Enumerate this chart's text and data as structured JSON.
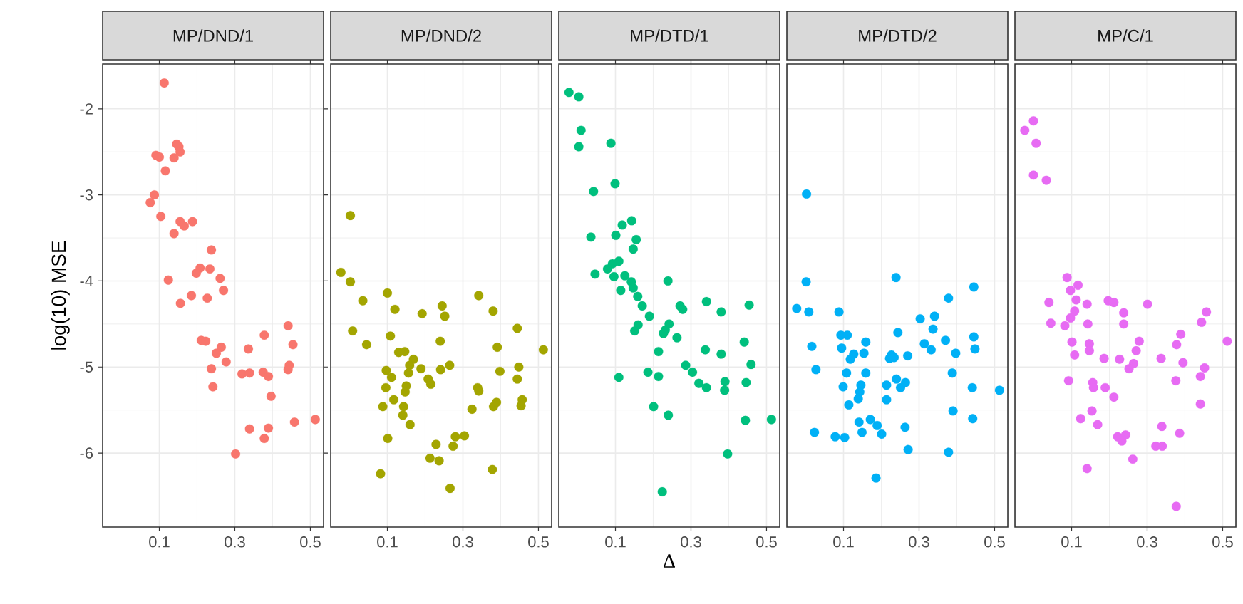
{
  "chart_data": [
    {
      "type": "scatter",
      "title": "MP/DND/1",
      "ylabel": "log(10) MSE",
      "color": "#F8766D",
      "grid": true,
      "xlim": [
        -0.05,
        0.535
      ],
      "ylim": [
        -6.86,
        -1.48
      ],
      "xticks": [
        0.1,
        0.3,
        0.5
      ],
      "yticks": [
        -6,
        -5,
        -4,
        -3,
        -2
      ],
      "x": [
        0.113,
        0.091,
        0.1,
        0.146,
        0.152,
        0.155,
        0.139,
        0.116,
        0.087,
        0.076,
        0.104,
        0.155,
        0.188,
        0.166,
        0.139,
        0.238,
        0.208,
        0.234,
        0.198,
        0.261,
        0.124,
        0.27,
        0.185,
        0.227,
        0.156,
        0.441,
        0.378,
        0.211,
        0.223,
        0.454,
        0.264,
        0.336,
        0.251,
        0.277,
        0.444,
        0.441,
        0.238,
        0.319,
        0.339,
        0.375,
        0.389,
        0.242,
        0.396,
        0.458,
        0.513,
        0.339,
        0.389,
        0.378,
        0.302
      ],
      "values": [
        -1.7,
        -2.54,
        -2.56,
        -2.41,
        -2.44,
        -2.5,
        -2.57,
        -2.72,
        -3.0,
        -3.09,
        -3.25,
        -3.31,
        -3.31,
        -3.36,
        -3.45,
        -3.64,
        -3.85,
        -3.86,
        -3.91,
        -3.97,
        -3.99,
        -4.11,
        -4.17,
        -4.2,
        -4.26,
        -4.52,
        -4.63,
        -4.69,
        -4.7,
        -4.74,
        -4.77,
        -4.79,
        -4.84,
        -4.94,
        -4.98,
        -5.03,
        -5.02,
        -5.08,
        -5.07,
        -5.06,
        -5.11,
        -5.23,
        -5.34,
        -5.64,
        -5.61,
        -5.72,
        -5.71,
        -5.83,
        -6.01
      ]
    },
    {
      "type": "scatter",
      "title": "MP/DND/2",
      "color": "#A3A500",
      "grid": true,
      "tick_labels": "x",
      "xlim": [
        -0.05,
        0.535
      ],
      "ylim": [
        -6.86,
        -1.48
      ],
      "xticks": [
        0.1,
        0.3,
        0.5
      ],
      "yticks": [
        -6,
        -5,
        -4,
        -3,
        -2
      ],
      "x": [
        0.002,
        -0.023,
        0.002,
        0.035,
        0.1,
        0.12,
        0.192,
        0.245,
        0.252,
        0.342,
        0.38,
        0.008,
        0.045,
        0.108,
        0.444,
        0.24,
        0.13,
        0.146,
        0.391,
        0.513,
        0.169,
        0.159,
        0.189,
        0.097,
        0.111,
        0.156,
        0.208,
        0.215,
        0.241,
        0.265,
        0.398,
        0.448,
        0.444,
        0.096,
        0.15,
        0.147,
        0.339,
        0.342,
        0.117,
        0.088,
        0.143,
        0.141,
        0.16,
        0.324,
        0.381,
        0.389,
        0.457,
        0.454,
        0.101,
        0.229,
        0.28,
        0.304,
        0.274,
        0.213,
        0.237,
        0.082,
        0.378,
        0.266
      ],
      "values": [
        -3.24,
        -3.9,
        -4.01,
        -4.23,
        -4.14,
        -4.33,
        -4.38,
        -4.29,
        -4.41,
        -4.17,
        -4.35,
        -4.58,
        -4.74,
        -4.64,
        -4.55,
        -4.7,
        -4.83,
        -4.82,
        -4.77,
        -4.8,
        -4.91,
        -4.98,
        -5.02,
        -5.04,
        -5.12,
        -5.07,
        -5.14,
        -5.2,
        -5.03,
        -4.98,
        -5.05,
        -5.0,
        -5.14,
        -5.24,
        -5.22,
        -5.29,
        -5.24,
        -5.28,
        -5.38,
        -5.46,
        -5.46,
        -5.56,
        -5.67,
        -5.49,
        -5.46,
        -5.41,
        -5.38,
        -5.45,
        -5.83,
        -5.9,
        -5.81,
        -5.8,
        -5.92,
        -6.06,
        -6.09,
        -6.24,
        -6.19,
        -6.41
      ]
    },
    {
      "type": "scatter",
      "title": "MP/DTD/1",
      "xlabel": "Δ",
      "color": "#00BF7D",
      "grid": true,
      "tick_labels": "x",
      "xlim": [
        -0.05,
        0.535
      ],
      "ylim": [
        -6.86,
        -1.48
      ],
      "xticks": [
        0.1,
        0.3,
        0.5
      ],
      "yticks": [
        -6,
        -5,
        -4,
        -3,
        -2
      ],
      "x": [
        -0.023,
        0.003,
        0.009,
        0.003,
        0.088,
        0.099,
        0.042,
        0.118,
        0.143,
        0.101,
        0.155,
        0.147,
        0.035,
        0.109,
        0.092,
        0.079,
        0.046,
        0.096,
        0.125,
        0.142,
        0.114,
        0.239,
        0.147,
        0.159,
        0.171,
        0.19,
        0.271,
        0.278,
        0.341,
        0.38,
        0.454,
        0.16,
        0.151,
        0.242,
        0.232,
        0.227,
        0.263,
        0.441,
        0.214,
        0.338,
        0.38,
        0.459,
        0.286,
        0.109,
        0.186,
        0.214,
        0.304,
        0.321,
        0.341,
        0.39,
        0.389,
        0.446,
        0.201,
        0.24,
        0.444,
        0.513,
        0.397,
        0.224
      ],
      "values": [
        -1.81,
        -1.86,
        -2.25,
        -2.44,
        -2.4,
        -2.87,
        -2.96,
        -3.35,
        -3.3,
        -3.47,
        -3.52,
        -3.63,
        -3.49,
        -3.77,
        -3.8,
        -3.86,
        -3.92,
        -3.95,
        -3.94,
        -4.01,
        -4.11,
        -4.0,
        -4.08,
        -4.18,
        -4.29,
        -4.41,
        -4.29,
        -4.33,
        -4.24,
        -4.36,
        -4.28,
        -4.51,
        -4.58,
        -4.5,
        -4.57,
        -4.61,
        -4.66,
        -4.71,
        -4.82,
        -4.8,
        -4.85,
        -4.97,
        -4.98,
        -5.12,
        -5.06,
        -5.11,
        -5.06,
        -5.19,
        -5.24,
        -5.17,
        -5.27,
        -5.18,
        -5.46,
        -5.56,
        -5.62,
        -5.61,
        -6.01,
        -6.45
      ]
    },
    {
      "type": "scatter",
      "title": "MP/DTD/2",
      "color": "#00B0F6",
      "grid": true,
      "tick_labels": "x",
      "xlim": [
        -0.05,
        0.535
      ],
      "ylim": [
        -6.86,
        -1.48
      ],
      "xticks": [
        0.1,
        0.3,
        0.5
      ],
      "yticks": [
        -6,
        -5,
        -4,
        -3,
        -2
      ],
      "x": [
        0.002,
        0.001,
        -0.024,
        0.008,
        0.088,
        0.239,
        0.445,
        0.378,
        0.303,
        0.341,
        0.337,
        0.244,
        0.093,
        0.11,
        0.016,
        0.095,
        0.159,
        0.127,
        0.118,
        0.154,
        0.227,
        0.222,
        0.234,
        0.27,
        0.314,
        0.332,
        0.37,
        0.445,
        0.448,
        0.397,
        0.027,
        0.108,
        0.159,
        0.388,
        0.099,
        0.146,
        0.143,
        0.214,
        0.24,
        0.251,
        0.264,
        0.214,
        0.139,
        0.114,
        0.441,
        0.513,
        0.39,
        0.442,
        0.141,
        0.171,
        0.189,
        0.201,
        0.149,
        0.023,
        0.078,
        0.103,
        0.263,
        0.271,
        0.378,
        0.186
      ],
      "values": [
        -2.99,
        -4.01,
        -4.32,
        -4.36,
        -4.36,
        -3.96,
        -4.07,
        -4.2,
        -4.44,
        -4.41,
        -4.56,
        -4.6,
        -4.63,
        -4.63,
        -4.76,
        -4.78,
        -4.71,
        -4.85,
        -4.91,
        -4.84,
        -4.86,
        -4.9,
        -4.89,
        -4.87,
        -4.73,
        -4.8,
        -4.69,
        -4.65,
        -4.79,
        -4.84,
        -5.03,
        -5.07,
        -5.07,
        -5.07,
        -5.23,
        -5.21,
        -5.29,
        -5.21,
        -5.14,
        -5.24,
        -5.18,
        -5.38,
        -5.37,
        -5.44,
        -5.24,
        -5.27,
        -5.51,
        -5.6,
        -5.64,
        -5.61,
        -5.68,
        -5.78,
        -5.76,
        -5.76,
        -5.81,
        -5.82,
        -5.7,
        -5.96,
        -5.99,
        -6.29
      ]
    },
    {
      "type": "scatter",
      "title": "MP/C/1",
      "color": "#E76BF3",
      "grid": true,
      "tick_labels": "x",
      "xlim": [
        -0.05,
        0.535
      ],
      "ylim": [
        -6.86,
        -1.48
      ],
      "xticks": [
        0.1,
        0.3,
        0.5
      ],
      "yticks": [
        -6,
        -5,
        -4,
        -3,
        -2
      ],
      "x": [
        -0.001,
        -0.024,
        0.006,
        -0.001,
        0.033,
        0.088,
        0.097,
        0.117,
        0.112,
        0.04,
        0.141,
        0.197,
        0.212,
        0.301,
        0.238,
        0.457,
        0.444,
        0.108,
        0.097,
        0.082,
        0.045,
        0.143,
        0.238,
        0.101,
        0.147,
        0.147,
        0.108,
        0.186,
        0.227,
        0.279,
        0.271,
        0.264,
        0.252,
        0.337,
        0.378,
        0.389,
        0.395,
        0.512,
        0.452,
        0.441,
        0.376,
        0.092,
        0.156,
        0.158,
        0.189,
        0.212,
        0.441,
        0.154,
        0.124,
        0.169,
        0.222,
        0.243,
        0.233,
        0.339,
        0.386,
        0.323,
        0.34,
        0.262,
        0.141,
        0.377
      ],
      "values": [
        -2.14,
        -2.25,
        -2.4,
        -2.77,
        -2.83,
        -3.96,
        -4.11,
        -4.05,
        -4.22,
        -4.25,
        -4.27,
        -4.23,
        -4.25,
        -4.27,
        -4.37,
        -4.36,
        -4.48,
        -4.35,
        -4.43,
        -4.52,
        -4.49,
        -4.5,
        -4.5,
        -4.71,
        -4.73,
        -4.81,
        -4.86,
        -4.9,
        -4.91,
        -4.7,
        -4.81,
        -4.96,
        -5.02,
        -4.9,
        -4.74,
        -4.62,
        -4.95,
        -4.7,
        -5.01,
        -5.11,
        -5.16,
        -5.16,
        -5.18,
        -5.24,
        -5.24,
        -5.35,
        -5.43,
        -5.51,
        -5.6,
        -5.67,
        -5.81,
        -5.79,
        -5.86,
        -5.69,
        -5.77,
        -5.92,
        -5.92,
        -6.07,
        -6.18,
        -6.62
      ]
    }
  ]
}
